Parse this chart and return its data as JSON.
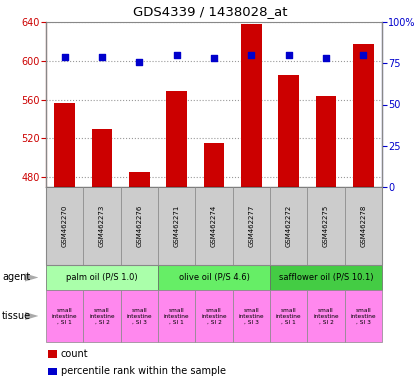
{
  "title": "GDS4339 / 1438028_at",
  "samples": [
    "GSM462270",
    "GSM462273",
    "GSM462276",
    "GSM462271",
    "GSM462274",
    "GSM462277",
    "GSM462272",
    "GSM462275",
    "GSM462278"
  ],
  "counts": [
    557,
    530,
    485,
    569,
    515,
    638,
    585,
    564,
    617
  ],
  "percentiles": [
    79,
    79,
    76,
    80,
    78,
    80,
    80,
    78,
    80
  ],
  "ymin": 470,
  "ymax": 640,
  "yticks": [
    480,
    520,
    560,
    600,
    640
  ],
  "y2min": 0,
  "y2max": 100,
  "y2ticks": [
    0,
    25,
    50,
    75,
    100
  ],
  "bar_color": "#cc0000",
  "dot_color": "#0000cc",
  "agent_labels": [
    "palm oil (P/S 1.0)",
    "olive oil (P/S 4.6)",
    "safflower oil (P/S 10.1)"
  ],
  "agent_bg": [
    "#aaffaa",
    "#66ee66",
    "#44cc44"
  ],
  "agent_groups": [
    3,
    3,
    3
  ],
  "tissue_subtexts": [
    ", SI 1",
    ", SI 2",
    ", SI 3",
    ", SI 1",
    ", SI 2",
    ", SI 3",
    ", SI 1",
    ", SI 2",
    ", SI 3"
  ],
  "tissue_color": "#ff88ee",
  "sample_bg_color": "#cccccc",
  "grid_color": "#999999",
  "left_label_color": "#cc0000",
  "right_label_color": "#0000cc",
  "bar_width": 0.55
}
